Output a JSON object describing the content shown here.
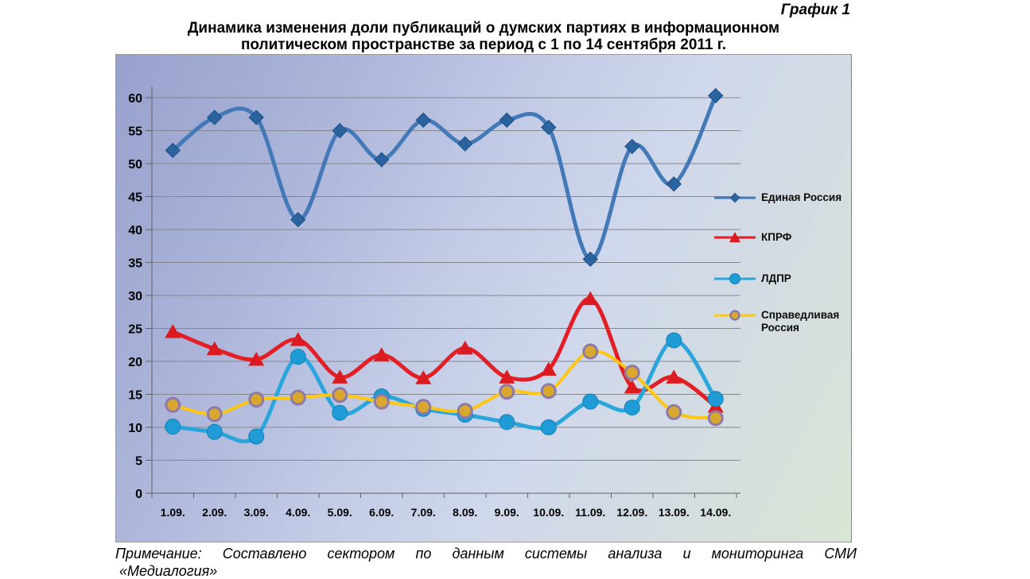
{
  "page": {
    "figure_label": "График 1",
    "title_line1": "Динамика изменения доли публикаций о думских партиях в информационном",
    "title_line2": "политическом пространстве за период с 1 по 14 сентября 2011 г.",
    "note_line1": "Примечание: Составлено сектором по данным системы анализа и мониторинга СМИ",
    "note_line2": "«Медиалогия»"
  },
  "chart_data": {
    "type": "line",
    "title": "Динамика изменения доли публикаций о думских партиях в информационном политическом пространстве за период с 1 по 14 сентября 2011 г.",
    "xlabel": "",
    "ylabel": "",
    "ylim": [
      0,
      60
    ],
    "ytick_step": 5,
    "yticks": [
      0,
      5,
      10,
      15,
      20,
      25,
      30,
      35,
      40,
      45,
      50,
      55,
      60
    ],
    "grid": true,
    "legend_position": "right-inside",
    "categories": [
      "1.09.",
      "2.09.",
      "3.09.",
      "4.09.",
      "5.09.",
      "6.09.",
      "7.09.",
      "8.09.",
      "9.09.",
      "10.09.",
      "11.09.",
      "12.09.",
      "13.09.",
      "14.09."
    ],
    "series": [
      {
        "name": "Единая Россия",
        "marker": "diamond",
        "color": "#4479b8",
        "marker_color": "#2b639f",
        "line_width": 5,
        "values": [
          52,
          57,
          57,
          41.5,
          55,
          50.6,
          56.6,
          53,
          56.6,
          55.5,
          35.5,
          52.6,
          46.9,
          60.3
        ]
      },
      {
        "name": "КПРФ",
        "marker": "triangle",
        "color": "#e31e24",
        "marker_color": "#dc1b21",
        "line_width": 5,
        "values": [
          24.5,
          21.9,
          20.3,
          23.3,
          17.6,
          21,
          17.5,
          22,
          17.6,
          18.8,
          29.5,
          16.1,
          17.6,
          13.2
        ]
      },
      {
        "name": "ЛДПР",
        "marker": "circle",
        "color": "#2ba6dd",
        "marker_color": "#1f9cd6",
        "marker_stroke": "#1480b6",
        "line_width": 5,
        "values": [
          10.1,
          9.3,
          8.6,
          20.7,
          12.2,
          14.7,
          12.8,
          11.9,
          10.8,
          10,
          13.9,
          13,
          23.2,
          14.3
        ]
      },
      {
        "name": "Справедливая Россия",
        "marker": "circle-ring",
        "color": "#ffc612",
        "marker_color": "#d9a72e",
        "marker_ring": "#8d7aa8",
        "line_width": 4,
        "values": [
          13.4,
          12,
          14.2,
          14.5,
          14.9,
          13.9,
          13.1,
          12.5,
          15.4,
          15.5,
          21.5,
          18.3,
          12.3,
          11.4
        ]
      }
    ]
  },
  "colors": {
    "grid": "#85858d",
    "axis": "#5f5f66",
    "tick_text": "#000000",
    "panel_gradient_start": "#97a1cc",
    "panel_gradient_end": "#d9e6d4"
  }
}
